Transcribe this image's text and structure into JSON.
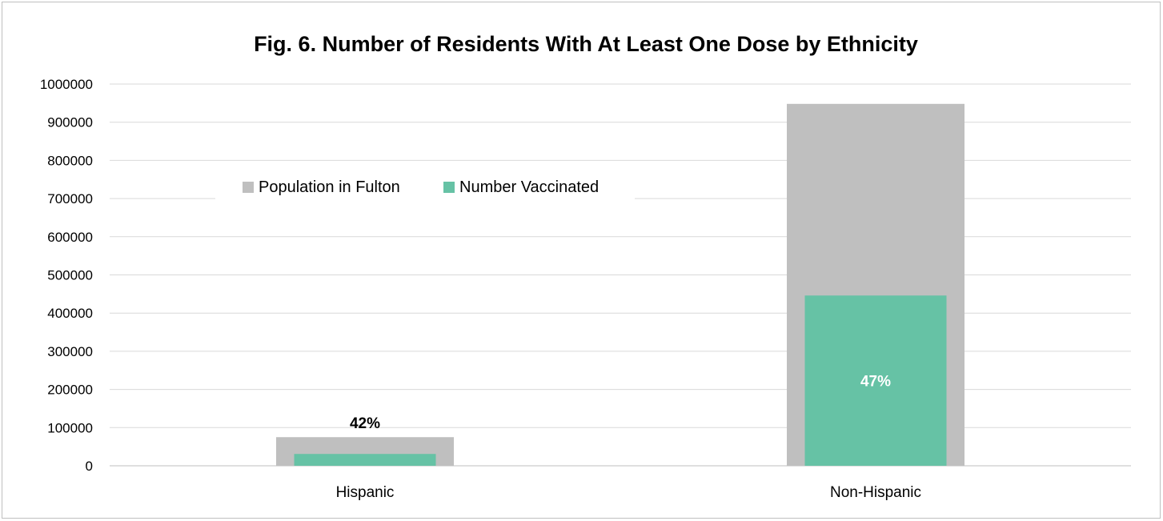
{
  "chart_data": {
    "type": "bar",
    "title": "Fig. 6. Number of Residents With At Least One Dose by Ethnicity",
    "xlabel": "",
    "ylabel": "",
    "categories": [
      "Hispanic",
      "Non-Hispanic"
    ],
    "series": [
      {
        "name": "Population in Fulton",
        "values": [
          75000,
          948000
        ],
        "color": "#bfbfbf"
      },
      {
        "name": "Number Vaccinated",
        "values": [
          31000,
          446000
        ],
        "color": "#66c2a5"
      }
    ],
    "data_labels": [
      {
        "category": "Hispanic",
        "text": "42%",
        "color": "#000000",
        "placement": "above-bar"
      },
      {
        "category": "Non-Hispanic",
        "text": "47%",
        "color": "#ffffff",
        "placement": "inside-bar"
      }
    ],
    "ylim": [
      0,
      1000000
    ],
    "yticks": [
      0,
      100000,
      200000,
      300000,
      400000,
      500000,
      600000,
      700000,
      800000,
      900000,
      1000000
    ],
    "grid": true,
    "legend_position": "top-left"
  }
}
